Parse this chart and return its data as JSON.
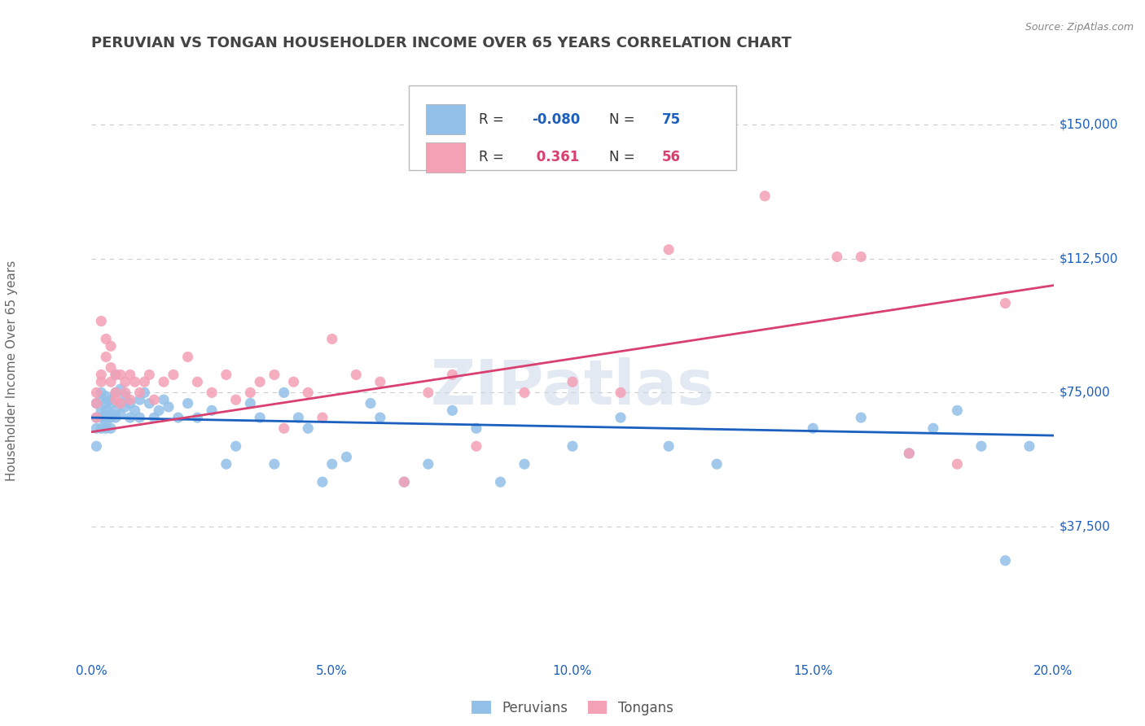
{
  "title": "PERUVIAN VS TONGAN HOUSEHOLDER INCOME OVER 65 YEARS CORRELATION CHART",
  "source_text": "Source: ZipAtlas.com",
  "ylabel": "Householder Income Over 65 years",
  "xlim": [
    0.0,
    0.2
  ],
  "ylim": [
    0,
    162500
  ],
  "yticks": [
    0,
    37500,
    75000,
    112500,
    150000
  ],
  "ytick_labels": [
    "",
    "$37,500",
    "$75,000",
    "$112,500",
    "$150,000"
  ],
  "xticks": [
    0.0,
    0.05,
    0.1,
    0.15,
    0.2
  ],
  "xtick_labels": [
    "0.0%",
    "5.0%",
    "10.0%",
    "15.0%",
    "20.0%"
  ],
  "peruvian_color": "#92C0E8",
  "tongan_color": "#F4A0B5",
  "peruvian_line_color": "#1B5FBF",
  "tongan_line_color": "#D94070",
  "R_peruvian": -0.08,
  "N_peruvian": 75,
  "R_tongan": 0.361,
  "N_tongan": 56,
  "legend_label_peruvian": "Peruvians",
  "legend_label_tongan": "Tongans",
  "watermark": "ZIPatlas",
  "background_color": "#FFFFFF",
  "grid_color": "#CCCCCC",
  "title_color": "#444444",
  "tick_label_color": "#1B5FBF",
  "peruvian_x": [
    0.001,
    0.001,
    0.001,
    0.001,
    0.002,
    0.002,
    0.002,
    0.002,
    0.002,
    0.003,
    0.003,
    0.003,
    0.003,
    0.003,
    0.003,
    0.004,
    0.004,
    0.004,
    0.004,
    0.004,
    0.005,
    0.005,
    0.005,
    0.005,
    0.006,
    0.006,
    0.006,
    0.007,
    0.007,
    0.008,
    0.008,
    0.009,
    0.01,
    0.01,
    0.011,
    0.012,
    0.013,
    0.014,
    0.015,
    0.016,
    0.018,
    0.02,
    0.022,
    0.025,
    0.028,
    0.03,
    0.033,
    0.035,
    0.038,
    0.04,
    0.043,
    0.045,
    0.048,
    0.05,
    0.053,
    0.058,
    0.06,
    0.065,
    0.07,
    0.075,
    0.08,
    0.085,
    0.09,
    0.1,
    0.11,
    0.12,
    0.13,
    0.15,
    0.16,
    0.17,
    0.175,
    0.18,
    0.185,
    0.19,
    0.195
  ],
  "peruvian_y": [
    68000,
    72000,
    65000,
    60000,
    70000,
    75000,
    68000,
    65000,
    73000,
    72000,
    68000,
    74000,
    67000,
    70000,
    65000,
    72000,
    69000,
    65000,
    73000,
    68000,
    70000,
    75000,
    68000,
    80000,
    72000,
    69000,
    76000,
    71000,
    74000,
    72000,
    68000,
    70000,
    73000,
    68000,
    75000,
    72000,
    68000,
    70000,
    73000,
    71000,
    68000,
    72000,
    68000,
    70000,
    55000,
    60000,
    72000,
    68000,
    55000,
    75000,
    68000,
    65000,
    50000,
    55000,
    57000,
    72000,
    68000,
    50000,
    55000,
    70000,
    65000,
    50000,
    55000,
    60000,
    68000,
    60000,
    55000,
    65000,
    68000,
    58000,
    65000,
    70000,
    60000,
    28000,
    60000
  ],
  "tongan_x": [
    0.001,
    0.001,
    0.001,
    0.002,
    0.002,
    0.002,
    0.003,
    0.003,
    0.004,
    0.004,
    0.004,
    0.005,
    0.005,
    0.005,
    0.006,
    0.006,
    0.007,
    0.007,
    0.008,
    0.008,
    0.009,
    0.01,
    0.011,
    0.012,
    0.013,
    0.015,
    0.017,
    0.02,
    0.022,
    0.025,
    0.028,
    0.03,
    0.033,
    0.035,
    0.038,
    0.04,
    0.042,
    0.045,
    0.048,
    0.05,
    0.055,
    0.06,
    0.065,
    0.07,
    0.075,
    0.08,
    0.09,
    0.1,
    0.11,
    0.12,
    0.14,
    0.155,
    0.16,
    0.17,
    0.18,
    0.19
  ],
  "tongan_y": [
    68000,
    72000,
    75000,
    95000,
    80000,
    78000,
    85000,
    90000,
    88000,
    82000,
    78000,
    80000,
    75000,
    73000,
    80000,
    72000,
    78000,
    75000,
    80000,
    73000,
    78000,
    75000,
    78000,
    80000,
    73000,
    78000,
    80000,
    85000,
    78000,
    75000,
    80000,
    73000,
    75000,
    78000,
    80000,
    65000,
    78000,
    75000,
    68000,
    90000,
    80000,
    78000,
    50000,
    75000,
    80000,
    60000,
    75000,
    78000,
    75000,
    115000,
    130000,
    113000,
    113000,
    58000,
    55000,
    100000
  ]
}
